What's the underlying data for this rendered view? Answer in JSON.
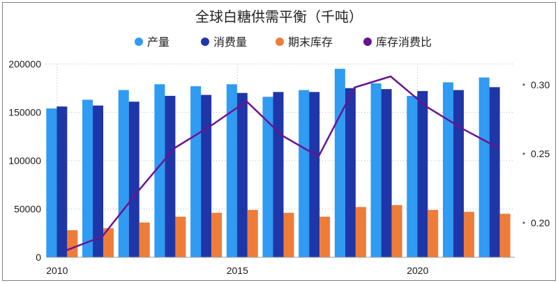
{
  "chart_data": {
    "type": "bar",
    "title": "全球白糖供需平衡（千吨）",
    "xlabel": "",
    "ylabel": "",
    "categories": [
      "2010",
      "2011",
      "2012",
      "2013",
      "2014",
      "2015",
      "2016",
      "2017",
      "2018",
      "2019",
      "2020",
      "2021",
      "2022"
    ],
    "x_tick_labels": [
      "2010",
      "2015",
      "2020"
    ],
    "x_tick_indices": [
      0,
      5,
      10
    ],
    "ylim": [
      0,
      200000
    ],
    "y_ticks": [
      0,
      50000,
      100000,
      150000,
      200000
    ],
    "y_tick_labels": [
      "0",
      "50000",
      "100000",
      "150000",
      "200000"
    ],
    "y2lim": [
      0.175,
      0.315
    ],
    "y2_ticks": [
      0.2,
      0.25,
      0.3
    ],
    "y2_tick_labels": [
      "0.20",
      "0.25",
      "0.30"
    ],
    "grid": "dotted",
    "legend_position": "top",
    "series": [
      {
        "name": "产量",
        "kind": "bar",
        "axis": "left",
        "color": "#2f9bf2",
        "values": [
          154000,
          163000,
          173000,
          179000,
          177000,
          179000,
          166000,
          173000,
          195000,
          180000,
          167000,
          181000,
          186000
        ]
      },
      {
        "name": "消费量",
        "kind": "bar",
        "axis": "left",
        "color": "#1f36a8",
        "values": [
          156000,
          157000,
          161000,
          167000,
          168000,
          170000,
          171000,
          171000,
          175000,
          174000,
          172000,
          173000,
          176000
        ]
      },
      {
        "name": "期末库存",
        "kind": "bar",
        "axis": "left",
        "color": "#ee7d3a",
        "values": [
          28000,
          30000,
          36000,
          42000,
          46000,
          49000,
          46000,
          42000,
          52000,
          54000,
          49000,
          47000,
          45000
        ]
      },
      {
        "name": "库存消费比",
        "kind": "line",
        "axis": "right",
        "color": "#6a1390",
        "values": [
          0.18,
          0.19,
          0.223,
          0.254,
          0.27,
          0.288,
          0.263,
          0.248,
          0.298,
          0.306,
          0.284,
          0.268,
          0.254
        ]
      }
    ]
  }
}
